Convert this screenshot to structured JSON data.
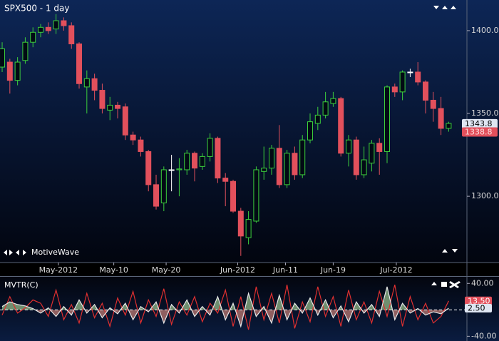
{
  "chart_data": [
    {
      "type": "candlestick",
      "title": "SPX500 - 1 day",
      "watermark": "MotiveWave",
      "open": [
        1378,
        1381,
        1370,
        1382,
        1393,
        1399,
        1402,
        1401,
        1406,
        1403,
        1392,
        1366,
        1371,
        1364,
        1352,
        1355,
        1354,
        1337,
        1334,
        1327,
        1307,
        1296,
        1316,
        1316,
        1316,
        1326,
        1318,
        1324,
        1335,
        1311,
        1309,
        1291,
        1275,
        1285,
        1315,
        1317,
        1329,
        1307,
        1326,
        1313,
        1334,
        1344,
        1349,
        1356,
        1359,
        1326,
        1334,
        1313,
        1320,
        1332,
        1327,
        1366,
        1363,
        1375,
        1375,
        1369,
        1358,
        1353,
        1341
      ],
      "high": [
        1393,
        1383,
        1384,
        1396,
        1402,
        1404,
        1405,
        1410,
        1408,
        1405,
        1393,
        1376,
        1374,
        1368,
        1360,
        1357,
        1356,
        1339,
        1336,
        1328,
        1313,
        1318,
        1325,
        1323,
        1328,
        1327,
        1326,
        1338,
        1336,
        1314,
        1310,
        1293,
        1291,
        1318,
        1330,
        1331,
        1343,
        1328,
        1330,
        1337,
        1350,
        1354,
        1363,
        1363,
        1360,
        1337,
        1336,
        1330,
        1334,
        1335,
        1367,
        1368,
        1376,
        1377,
        1381,
        1370,
        1363,
        1360,
        1345
      ],
      "low": [
        1375,
        1362,
        1367,
        1380,
        1390,
        1396,
        1398,
        1398,
        1400,
        1389,
        1365,
        1350,
        1358,
        1350,
        1346,
        1347,
        1334,
        1331,
        1324,
        1303,
        1292,
        1291,
        1303,
        1300,
        1313,
        1309,
        1316,
        1321,
        1308,
        1294,
        1290,
        1264,
        1271,
        1284,
        1310,
        1313,
        1305,
        1305,
        1310,
        1311,
        1332,
        1340,
        1347,
        1354,
        1324,
        1318,
        1310,
        1311,
        1315,
        1313,
        1320,
        1360,
        1358,
        1372,
        1367,
        1350,
        1345,
        1337,
        1339
      ],
      "close": [
        1389,
        1370,
        1381,
        1393,
        1399,
        1402,
        1400,
        1406,
        1403,
        1392,
        1368,
        1371,
        1364,
        1353,
        1355,
        1353,
        1337,
        1334,
        1327,
        1307,
        1294,
        1316,
        1316,
        1316.5,
        1326,
        1317,
        1324,
        1335,
        1311,
        1309,
        1291,
        1276,
        1286,
        1316,
        1317,
        1329,
        1307,
        1326,
        1313,
        1334,
        1345,
        1349,
        1357,
        1359,
        1326,
        1334,
        1313,
        1322,
        1332,
        1327,
        1366,
        1363,
        1375,
        1375,
        1369,
        1358,
        1353,
        1341,
        1344
      ],
      "up_color": "#3ccf3c",
      "down_color": "#e2505c",
      "doji_color": "#ffffff",
      "xlim": [
        -0.28,
        60.37
      ],
      "xticks": [
        {
          "value": 7.3,
          "label": "May-2012"
        },
        {
          "value": 14.5,
          "label": "May-10"
        },
        {
          "value": 21.3,
          "label": "May-20"
        },
        {
          "value": 30.6,
          "label": "Jun-2012"
        },
        {
          "value": 36.8,
          "label": "Jun-11"
        },
        {
          "value": 43,
          "label": "Jun-19"
        },
        {
          "value": 51.2,
          "label": "Jul-2012"
        }
      ],
      "ylim": [
        1260,
        1418.5
      ],
      "yticks": [
        {
          "value": 1300,
          "label": "1300.0"
        },
        {
          "value": 1350,
          "label": "1350.0"
        },
        {
          "value": 1400,
          "label": "1400.0"
        }
      ],
      "price_markers": [
        {
          "value": 1343.8,
          "color": "#dfe6f2"
        },
        {
          "value": 1338.8,
          "color": "#e2505c"
        }
      ]
    },
    {
      "type": "line",
      "title": "MVTR(C)",
      "series": [
        {
          "color": "#e03030",
          "values": [
            -8,
            20,
            -5,
            3,
            15,
            10,
            -10,
            30,
            -15,
            8,
            -20,
            25,
            -12,
            10,
            -25,
            18,
            -8,
            28,
            -20,
            15,
            -10,
            32,
            -22,
            12,
            -8,
            20,
            -18,
            10,
            -5,
            30,
            -25,
            20,
            -30,
            35,
            -15,
            25,
            -20,
            38,
            -28,
            12,
            -18,
            35,
            -10,
            20,
            -25,
            30,
            -15,
            12,
            -20,
            28,
            -10,
            38,
            -25,
            20,
            -15,
            10,
            -20,
            -10,
            13.5
          ]
        },
        {
          "color": "#e6e6e6",
          "fill_above": "#6f8f6f",
          "fill_below": "#8f5f60",
          "values": [
            5,
            12,
            8,
            6,
            2,
            -5,
            3,
            -10,
            5,
            -8,
            15,
            -5,
            8,
            -12,
            3,
            -6,
            10,
            -15,
            5,
            -3,
            12,
            -20,
            8,
            -5,
            15,
            -10,
            5,
            -8,
            20,
            -15,
            10,
            -25,
            25,
            -10,
            5,
            -20,
            22,
            -15,
            10,
            -5,
            18,
            -8,
            15,
            -12,
            6,
            -18,
            12,
            -5,
            8,
            -10,
            35,
            -15,
            10,
            -5,
            2,
            -8,
            -3,
            -6,
            2.5
          ]
        }
      ],
      "ylim": [
        -45,
        50
      ],
      "yticks": [
        {
          "value": -40,
          "label": "-40.00"
        },
        {
          "value": 40,
          "label": "40.00"
        }
      ],
      "zero_line": true,
      "markers": [
        {
          "value": 13.5,
          "label": "13.50",
          "color": "#e2505c"
        },
        {
          "value": 2.5,
          "label": "2.50",
          "color": "#dfe6f2"
        }
      ]
    }
  ]
}
